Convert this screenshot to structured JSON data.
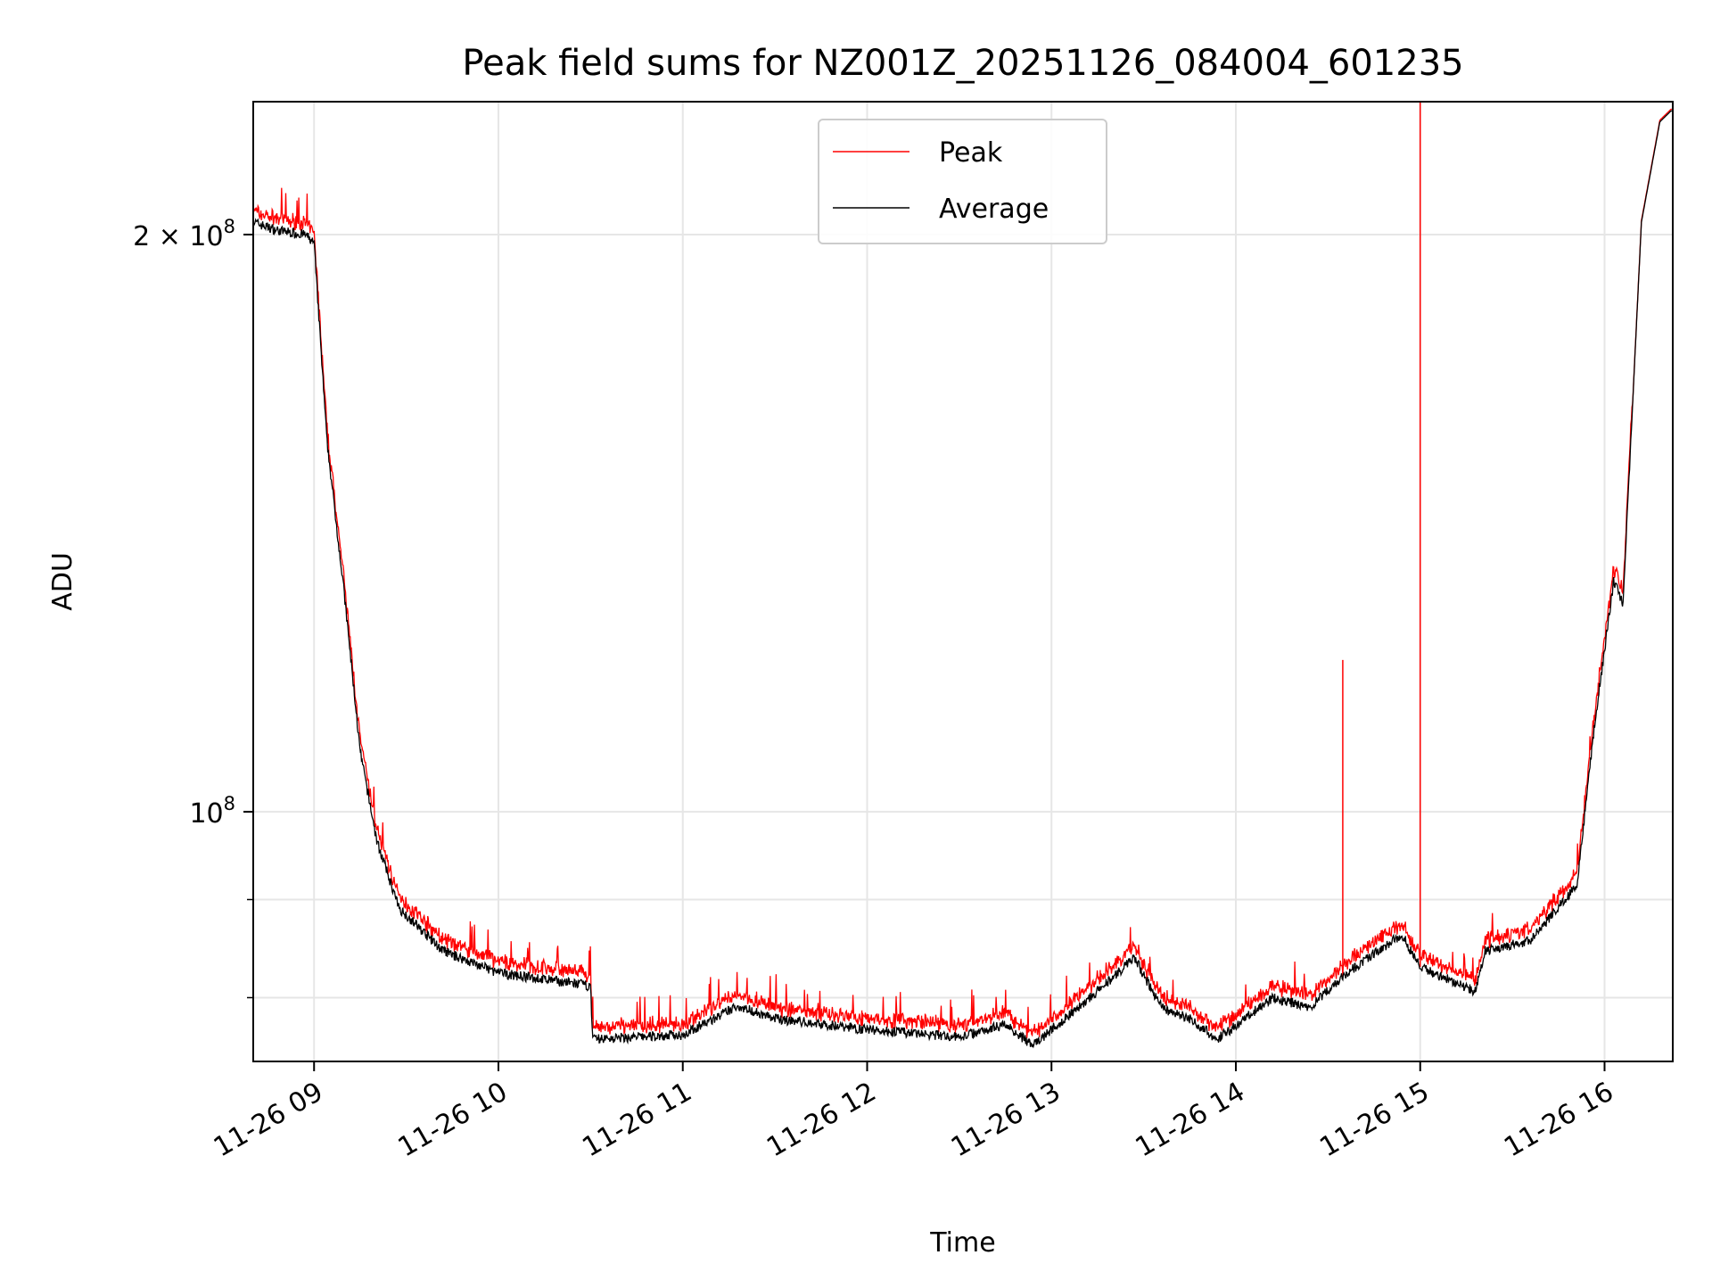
{
  "chart_data": {
    "type": "line",
    "title": "Peak field sums for NZ001Z_20251126_084004_601235",
    "xlabel": "Time",
    "ylabel": "ADU",
    "yscale": "log",
    "ylim": [
      74100000,
      234600000
    ],
    "xlim_hours": [
      8.67,
      16.37
    ],
    "x_unit": "hour of day 2025-11-26",
    "grid": true,
    "legend": {
      "placement": "top-center",
      "entries": [
        "Peak",
        "Average"
      ]
    },
    "x_ticks": [
      {
        "value": 9,
        "label": "11-26 09"
      },
      {
        "value": 10,
        "label": "11-26 10"
      },
      {
        "value": 11,
        "label": "11-26 11"
      },
      {
        "value": 12,
        "label": "11-26 12"
      },
      {
        "value": 13,
        "label": "11-26 13"
      },
      {
        "value": 14,
        "label": "11-26 14"
      },
      {
        "value": 15,
        "label": "11-26 15"
      },
      {
        "value": 16,
        "label": "11-26 16"
      }
    ],
    "y_ticks": [
      {
        "value": 200000000,
        "label_base": "2 × 10",
        "label_exp": "8"
      },
      {
        "value": 100000000,
        "label_base": "10",
        "label_exp": "8"
      }
    ],
    "y_minor_ticks": [
      80000000,
      90000000
    ],
    "colors": {
      "Peak": "#ff0000",
      "Average": "#000000",
      "grid": "#e6e6e6"
    },
    "series": [
      {
        "name": "Average",
        "x": [
          8.67,
          8.8,
          8.95,
          9.0,
          9.07,
          9.16,
          9.25,
          9.34,
          9.46,
          9.7,
          10.0,
          10.48,
          10.5,
          10.51,
          11.0,
          11.3,
          11.5,
          12.0,
          12.5,
          12.75,
          12.9,
          13.0,
          13.25,
          13.45,
          13.6,
          13.75,
          13.9,
          14.2,
          14.4,
          14.6,
          14.9,
          15.0,
          15.3,
          15.35,
          15.6,
          15.85,
          15.95,
          16.05,
          16.1,
          16.2,
          16.3,
          16.36
        ],
        "y": [
          203000000,
          201000000,
          200000000,
          198000000,
          156000000,
          131000000,
          107500000,
          96600000,
          89100000,
          84600000,
          82400000,
          81200000,
          81000000,
          76100000,
          76500000,
          79200000,
          78000000,
          77000000,
          76300000,
          77500000,
          75500000,
          77000000,
          80600000,
          83900000,
          79000000,
          78000000,
          76100000,
          80000000,
          79000000,
          82400000,
          86300000,
          83000000,
          80600000,
          84600000,
          85700000,
          91600000,
          111800000,
          132000000,
          128500000,
          203000000,
          229000000,
          232000000
        ]
      },
      {
        "name": "Peak",
        "offset_ratio": 1.008,
        "spikes": [
          {
            "x": 14.58,
            "y": 120000000
          },
          {
            "x": 15.0,
            "y": 250000000
          }
        ]
      }
    ]
  }
}
